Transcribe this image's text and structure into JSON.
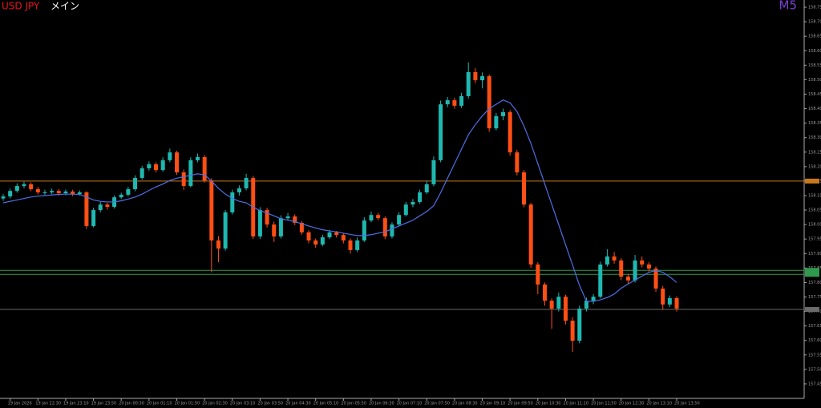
{
  "symbol": "USD JPY",
  "panel": "メイン",
  "timeframe": "M5",
  "chart_data": {
    "type": "candlestick",
    "x": [
      null,
      "19 Jan 2026",
      null,
      null,
      null,
      "19 Jan 22:30",
      null,
      null,
      null,
      "19 Jan 23:10",
      null,
      null,
      null,
      "19 Jan 23:50",
      null,
      null,
      null,
      "20 Jan 00:30",
      null,
      null,
      null,
      "20 Jan 01:10",
      null,
      null,
      null,
      "20 Jan 01:50",
      null,
      null,
      null,
      "20 Jan 02:30",
      null,
      null,
      null,
      "20 Jan 03:10",
      null,
      null,
      null,
      "20 Jan 03:50",
      null,
      null,
      null,
      "20 Jan 04:30",
      null,
      null,
      null,
      "20 Jan 05:10",
      null,
      null,
      null,
      "20 Jan 05:50",
      null,
      null,
      null,
      "20 Jan 06:30",
      null,
      null,
      null,
      "20 Jan 07:10",
      null,
      null,
      null,
      "20 Jan 07:50",
      null,
      null,
      null,
      "20 Jan 08:30",
      null,
      null,
      null,
      "20 Jan 09:10",
      null,
      null,
      null,
      "20 Jan 09:50",
      null,
      null,
      null,
      "20 Jan 10:30",
      null,
      null,
      null,
      "20 Jan 11:10",
      null,
      null,
      null,
      "20 Jan 11:50",
      null,
      null,
      null,
      "20 Jan 12:30",
      null,
      null,
      null,
      "20 Jan 13:10",
      null,
      null,
      null,
      "20 Jan 13:50"
    ],
    "open": [
      158.09,
      158.097,
      158.116,
      158.133,
      158.139,
      158.122,
      158.111,
      158.111,
      158.116,
      158.108,
      158.114,
      158.105,
      158.111,
      157.995,
      158.05,
      158.069,
      158.061,
      158.094,
      158.103,
      158.122,
      158.161,
      158.194,
      158.208,
      158.188,
      158.222,
      158.249,
      158.18,
      158.133,
      158.222,
      158.233,
      158.152,
      157.945,
      157.917,
      158.042,
      158.111,
      158.125,
      158.161,
      157.959,
      158.05,
      158.0,
      157.959,
      158.022,
      158.028,
      158.006,
      157.973,
      157.945,
      157.931,
      157.956,
      157.973,
      157.964,
      157.945,
      157.912,
      157.945,
      158.014,
      158.033,
      158.022,
      157.959,
      158.0,
      158.033,
      158.069,
      158.078,
      158.111,
      158.139,
      158.222,
      158.415,
      158.429,
      158.41,
      158.443,
      158.526,
      158.498,
      158.512,
      158.332,
      158.374,
      158.388,
      158.249,
      158.18,
      158.069,
      157.862,
      157.793,
      157.737,
      157.71,
      157.751,
      157.668,
      157.599,
      157.71,
      157.737,
      157.751,
      157.862,
      157.89,
      157.876,
      157.82,
      157.807,
      157.876,
      157.862,
      157.848,
      157.779,
      157.724,
      157.746
    ],
    "high": [
      158.105,
      158.124,
      158.142,
      158.148,
      158.146,
      158.13,
      158.12,
      158.124,
      158.122,
      158.121,
      158.12,
      158.118,
      158.115,
      158.058,
      158.078,
      158.075,
      158.1,
      158.11,
      158.13,
      158.17,
      158.203,
      158.218,
      158.215,
      158.232,
      158.262,
      158.255,
      158.19,
      158.232,
      158.245,
      158.24,
      158.16,
      157.96,
      158.05,
      158.12,
      158.135,
      158.175,
      158.168,
      158.06,
      158.058,
      158.01,
      158.032,
      158.04,
      158.035,
      158.012,
      157.98,
      157.952,
      157.965,
      157.982,
      157.978,
      157.97,
      157.952,
      157.955,
      158.025,
      158.045,
      158.04,
      158.028,
      158.008,
      158.042,
      158.078,
      158.088,
      158.12,
      158.15,
      158.235,
      158.428,
      158.44,
      158.438,
      158.455,
      158.56,
      158.54,
      158.525,
      158.518,
      158.385,
      158.4,
      158.395,
      158.258,
      158.188,
      158.075,
      157.87,
      157.8,
      157.745,
      157.765,
      157.758,
      157.68,
      157.72,
      157.748,
      157.76,
      157.872,
      157.915,
      157.905,
      157.884,
      157.83,
      157.895,
      157.89,
      157.87,
      157.855,
      157.788,
      157.755,
      157.752
    ],
    "low": [
      158.082,
      158.09,
      158.11,
      158.125,
      158.115,
      158.104,
      158.102,
      158.105,
      158.1,
      158.101,
      158.098,
      158.1,
      157.985,
      157.99,
      158.042,
      158.052,
      158.055,
      158.088,
      158.097,
      158.115,
      158.155,
      158.186,
      158.18,
      158.182,
      158.215,
      158.172,
      158.12,
      158.128,
      158.215,
      158.145,
      157.835,
      157.87,
      157.91,
      158.035,
      158.1,
      158.118,
      157.95,
      157.95,
      157.99,
      157.94,
      157.952,
      158.015,
      157.998,
      157.965,
      157.935,
      157.92,
      157.925,
      157.95,
      157.955,
      157.935,
      157.9,
      157.905,
      157.94,
      158.008,
      158.015,
      157.95,
      157.952,
      157.995,
      158.028,
      158.06,
      158.072,
      158.105,
      158.132,
      158.215,
      158.405,
      158.4,
      158.402,
      158.435,
      158.488,
      158.47,
      158.32,
      158.325,
      158.36,
      158.238,
      158.17,
      158.06,
      157.85,
      157.76,
      157.72,
      157.64,
      157.7,
      157.655,
      157.56,
      157.59,
      157.7,
      157.725,
      157.745,
      157.855,
      157.865,
      157.808,
      157.795,
      157.8,
      157.852,
      157.838,
      157.768,
      157.705,
      157.715,
      157.7
    ],
    "close": [
      158.097,
      158.116,
      158.133,
      158.139,
      158.122,
      158.111,
      158.111,
      158.116,
      158.108,
      158.114,
      158.105,
      158.111,
      157.995,
      158.05,
      158.069,
      158.061,
      158.094,
      158.103,
      158.122,
      158.161,
      158.194,
      158.208,
      158.188,
      158.222,
      158.249,
      158.18,
      158.133,
      158.222,
      158.233,
      158.152,
      157.945,
      157.917,
      158.042,
      158.111,
      158.125,
      158.161,
      157.959,
      158.05,
      158.0,
      157.959,
      158.022,
      158.028,
      158.006,
      157.973,
      157.945,
      157.931,
      157.956,
      157.973,
      157.964,
      157.945,
      157.912,
      157.945,
      158.014,
      158.033,
      158.022,
      157.959,
      158.0,
      158.033,
      158.069,
      158.078,
      158.111,
      158.139,
      158.222,
      158.415,
      158.429,
      158.41,
      158.443,
      158.526,
      158.498,
      158.512,
      158.332,
      158.374,
      158.388,
      158.249,
      158.18,
      158.069,
      157.862,
      157.793,
      157.737,
      157.71,
      157.751,
      157.668,
      157.599,
      157.71,
      157.737,
      157.751,
      157.862,
      157.89,
      157.876,
      157.82,
      157.807,
      157.876,
      157.862,
      157.848,
      157.779,
      157.724,
      157.746,
      157.71
    ],
    "up_color": "#1fb8b0",
    "down_color": "#ff4f14",
    "moving_average": {
      "color": "#4f6fe8",
      "values": [
        158.075,
        158.08,
        158.085,
        158.09,
        158.095,
        158.098,
        158.1,
        158.102,
        158.104,
        158.105,
        158.105,
        158.104,
        158.095,
        158.085,
        158.08,
        158.078,
        158.078,
        158.082,
        158.088,
        158.095,
        158.105,
        158.118,
        158.13,
        158.14,
        158.152,
        158.16,
        158.165,
        158.17,
        158.175,
        158.172,
        158.15,
        158.125,
        158.105,
        158.09,
        158.08,
        158.075,
        158.06,
        158.048,
        158.04,
        158.03,
        158.02,
        158.015,
        158.01,
        158.003,
        157.995,
        157.988,
        157.982,
        157.978,
        157.975,
        157.97,
        157.966,
        157.962,
        157.962,
        157.965,
        157.97,
        157.975,
        157.985,
        157.995,
        158.005,
        158.015,
        158.03,
        158.045,
        158.065,
        158.11,
        158.16,
        158.21,
        158.26,
        158.31,
        158.345,
        158.375,
        158.4,
        158.415,
        158.43,
        158.42,
        158.39,
        158.34,
        158.28,
        158.21,
        158.14,
        158.07,
        158.0,
        157.93,
        157.86,
        157.79,
        157.735,
        157.735,
        157.74,
        157.748,
        157.76,
        157.78,
        157.795,
        157.808,
        157.822,
        157.835,
        157.842,
        157.835,
        157.82,
        157.8
      ]
    },
    "levels": [
      {
        "value": 158.15,
        "color": "#c8791c"
      },
      {
        "value": 157.842,
        "color": "#2f9a4f"
      },
      {
        "value": 157.828,
        "color": "#2f9a4f"
      },
      {
        "value": 157.707,
        "color": "#6c6c6c"
      }
    ],
    "ylim": [
      157.4,
      158.775
    ],
    "yticks": [
      158.75,
      {
        "value": 158.7,
        "label": "158.70"
      },
      158.65,
      {
        "value": 158.6,
        "label": "158.60"
      },
      158.55,
      {
        "value": 158.5,
        "label": "158.50"
      },
      158.45,
      {
        "value": 158.4,
        "label": "158.40"
      },
      158.35,
      {
        "value": 158.3,
        "label": "158.30"
      },
      158.25,
      {
        "value": 158.2,
        "label": "158.20"
      },
      158.15,
      {
        "value": 158.1,
        "label": "158.10"
      },
      158.05,
      {
        "value": 158.0,
        "label": "158.00"
      },
      157.95,
      {
        "value": 157.9,
        "label": "157.90"
      },
      157.85,
      {
        "value": 157.8,
        "label": "157.80"
      },
      157.75,
      {
        "value": 157.7,
        "label": "157.70"
      },
      157.65,
      {
        "value": 157.6,
        "label": "157.60"
      },
      157.55,
      {
        "value": 157.5,
        "label": "157.50"
      },
      157.45
    ]
  }
}
